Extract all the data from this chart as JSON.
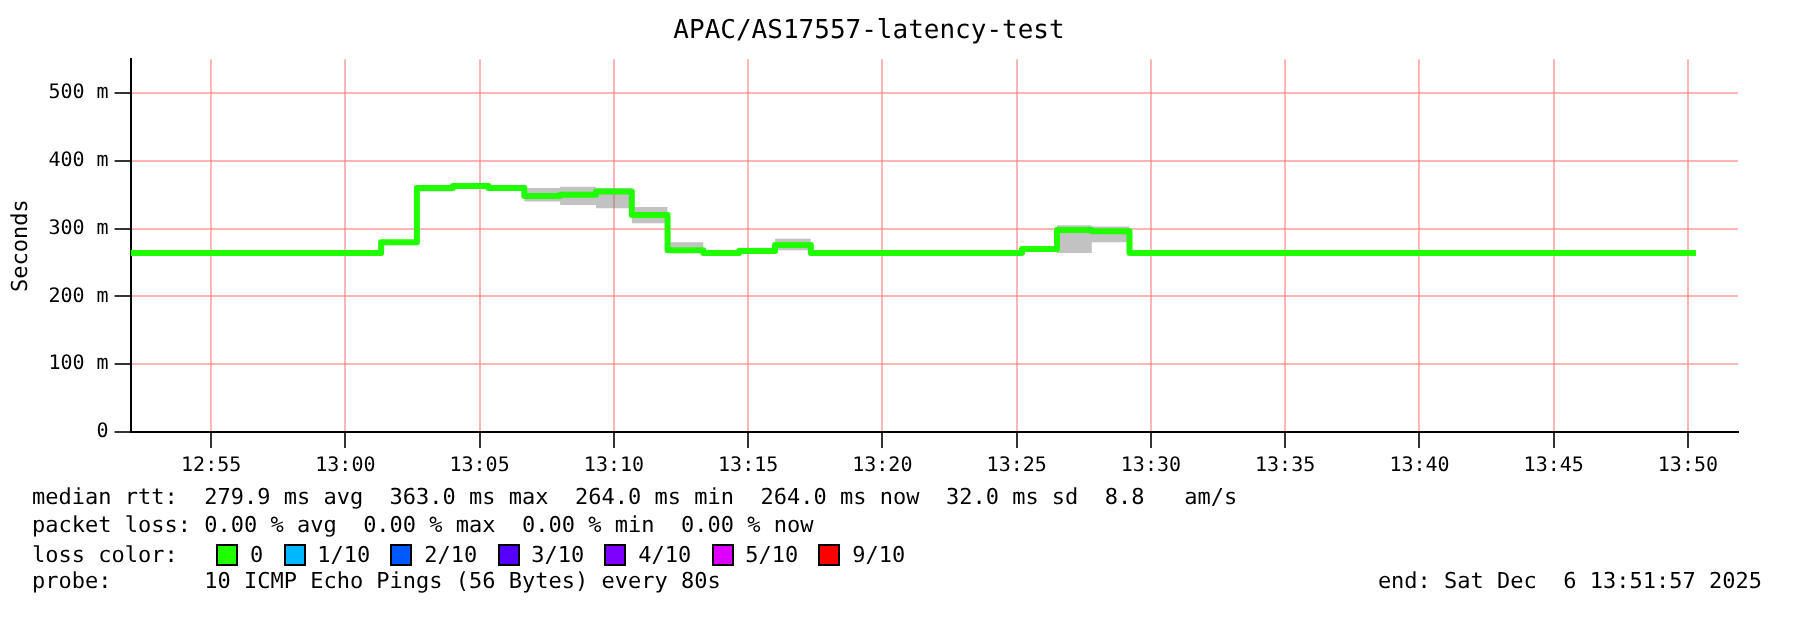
{
  "chart_data": {
    "type": "step",
    "title": "APAC/AS17557-latency-test",
    "ylabel": "Seconds",
    "x": [
      12.8667,
      13.0222,
      13.0444,
      13.0667,
      13.0889,
      13.1111,
      13.1333,
      13.1556,
      13.1778,
      13.2,
      13.2222,
      13.2444,
      13.2667,
      13.2889,
      13.42,
      13.4417,
      13.4633,
      13.4867,
      13.8383
    ],
    "series": [
      {
        "color": "#20ff00",
        "values": [
          264,
          280,
          360,
          363,
          360,
          348,
          350,
          355,
          320,
          268,
          264,
          267,
          276,
          264,
          270,
          298,
          296,
          264,
          264
        ],
        "lower": [
          264,
          278,
          355,
          362,
          356,
          340,
          335,
          330,
          308,
          264,
          262,
          264,
          268,
          263,
          266,
          264,
          280,
          263,
          263
        ],
        "upper": [
          265,
          283,
          362,
          364,
          362,
          360,
          362,
          360,
          332,
          280,
          265,
          272,
          285,
          265,
          272,
          305,
          303,
          265,
          265
        ]
      }
    ],
    "xlim": [
      12.8667,
      13.8644
    ],
    "xticks": [
      {
        "value": 12.9167,
        "label": "12:55"
      },
      {
        "value": 13,
        "label": "13:00"
      },
      {
        "value": 13.0833,
        "label": "13:05"
      },
      {
        "value": 13.1667,
        "label": "13:10"
      },
      {
        "value": 13.25,
        "label": "13:15"
      },
      {
        "value": 13.3333,
        "label": "13:20"
      },
      {
        "value": 13.4167,
        "label": "13:25"
      },
      {
        "value": 13.5,
        "label": "13:30"
      },
      {
        "value": 13.5833,
        "label": "13:35"
      },
      {
        "value": 13.6667,
        "label": "13:40"
      },
      {
        "value": 13.75,
        "label": "13:45"
      },
      {
        "value": 13.8333,
        "label": "13:50"
      }
    ],
    "ylim": [
      0,
      550
    ],
    "yticks": [
      0,
      {
        "value": 100,
        "label": "100 m"
      },
      {
        "value": 200,
        "label": "200 m"
      },
      {
        "value": 300,
        "label": "300 m"
      },
      {
        "value": 400,
        "label": "400 m"
      },
      {
        "value": 500,
        "label": "500 m"
      }
    ],
    "grid": true,
    "legend": false,
    "annotations": [
      "median rtt:  279.9 ms avg  363.0 ms max  264.0 ms min  264.0 ms now  32.0 ms sd  8.8   am/s",
      "packet loss: 0.00 % avg  0.00 % max  0.00 % min  0.00 % now",
      "loss color:",
      "0",
      "1/10",
      "2/10",
      "3/10",
      "4/10",
      "5/10",
      "9/10",
      "probe:       10 ICMP Echo Pings (56 Bytes) every 80s",
      "end: Sat Dec  6 13:51:57 2025"
    ]
  }
}
